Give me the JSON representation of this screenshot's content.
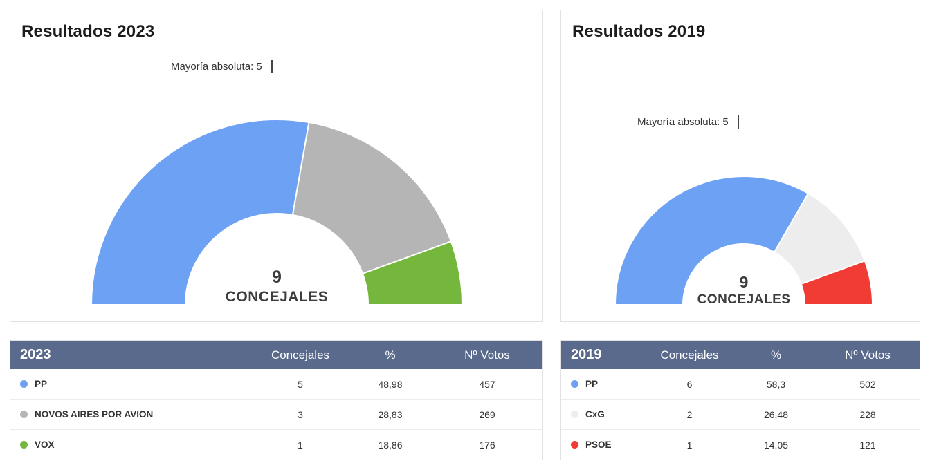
{
  "panels": [
    {
      "title": "Resultados 2023",
      "majority_label": "Mayoría absoluta: 5",
      "center_value": "9",
      "center_label": "CONCEJALES",
      "table": {
        "year": "2023",
        "columns": [
          "Concejales",
          "%",
          "Nº Votos"
        ],
        "rows": [
          {
            "party": "PP",
            "concejales": "5",
            "pct": "48,98",
            "votes": "457"
          },
          {
            "party": "NOVOS AIRES POR AVION",
            "concejales": "3",
            "pct": "28,83",
            "votes": "269"
          },
          {
            "party": "VOX",
            "concejales": "1",
            "pct": "18,86",
            "votes": "176"
          }
        ]
      }
    },
    {
      "title": "Resultados 2019",
      "majority_label": "Mayoría absoluta: 5",
      "center_value": "9",
      "center_label": "CONCEJALES",
      "table": {
        "year": "2019",
        "columns": [
          "Concejales",
          "%",
          "Nº Votos"
        ],
        "rows": [
          {
            "party": "PP",
            "concejales": "6",
            "pct": "58,3",
            "votes": "502"
          },
          {
            "party": "CxG",
            "concejales": "2",
            "pct": "26,48",
            "votes": "228"
          },
          {
            "party": "PSOE",
            "concejales": "1",
            "pct": "14,05",
            "votes": "121"
          }
        ]
      }
    }
  ],
  "chart_data": [
    {
      "type": "pie",
      "subtype": "half-donut-parliament",
      "title": "Resultados 2023",
      "annotation": "Mayoría absoluta: 5",
      "majority": 5,
      "total_seats": 9,
      "center_label": "9 CONCEJALES",
      "legend_position": "table-below",
      "series": [
        {
          "name": "PP",
          "seats": 5,
          "pct": 48.98,
          "votes": 457,
          "color": "#6da1f4"
        },
        {
          "name": "NOVOS AIRES POR AVION",
          "seats": 3,
          "pct": 28.83,
          "votes": 269,
          "color": "#b5b5b5"
        },
        {
          "name": "VOX",
          "seats": 1,
          "pct": 18.86,
          "votes": 176,
          "color": "#74b73c"
        }
      ]
    },
    {
      "type": "pie",
      "subtype": "half-donut-parliament",
      "title": "Resultados 2019",
      "annotation": "Mayoría absoluta: 5",
      "majority": 5,
      "total_seats": 9,
      "center_label": "9 CONCEJALES",
      "legend_position": "table-below",
      "series": [
        {
          "name": "PP",
          "seats": 6,
          "pct": 58.3,
          "votes": 502,
          "color": "#6da1f4"
        },
        {
          "name": "CxG",
          "seats": 2,
          "pct": 26.48,
          "votes": 228,
          "color": "#ededed"
        },
        {
          "name": "PSOE",
          "seats": 1,
          "pct": 14.05,
          "votes": 121,
          "color": "#f13c35"
        }
      ]
    }
  ],
  "colors": {
    "table_header_bg": "#5a6a8c",
    "table_header_text": "#ffffff"
  }
}
